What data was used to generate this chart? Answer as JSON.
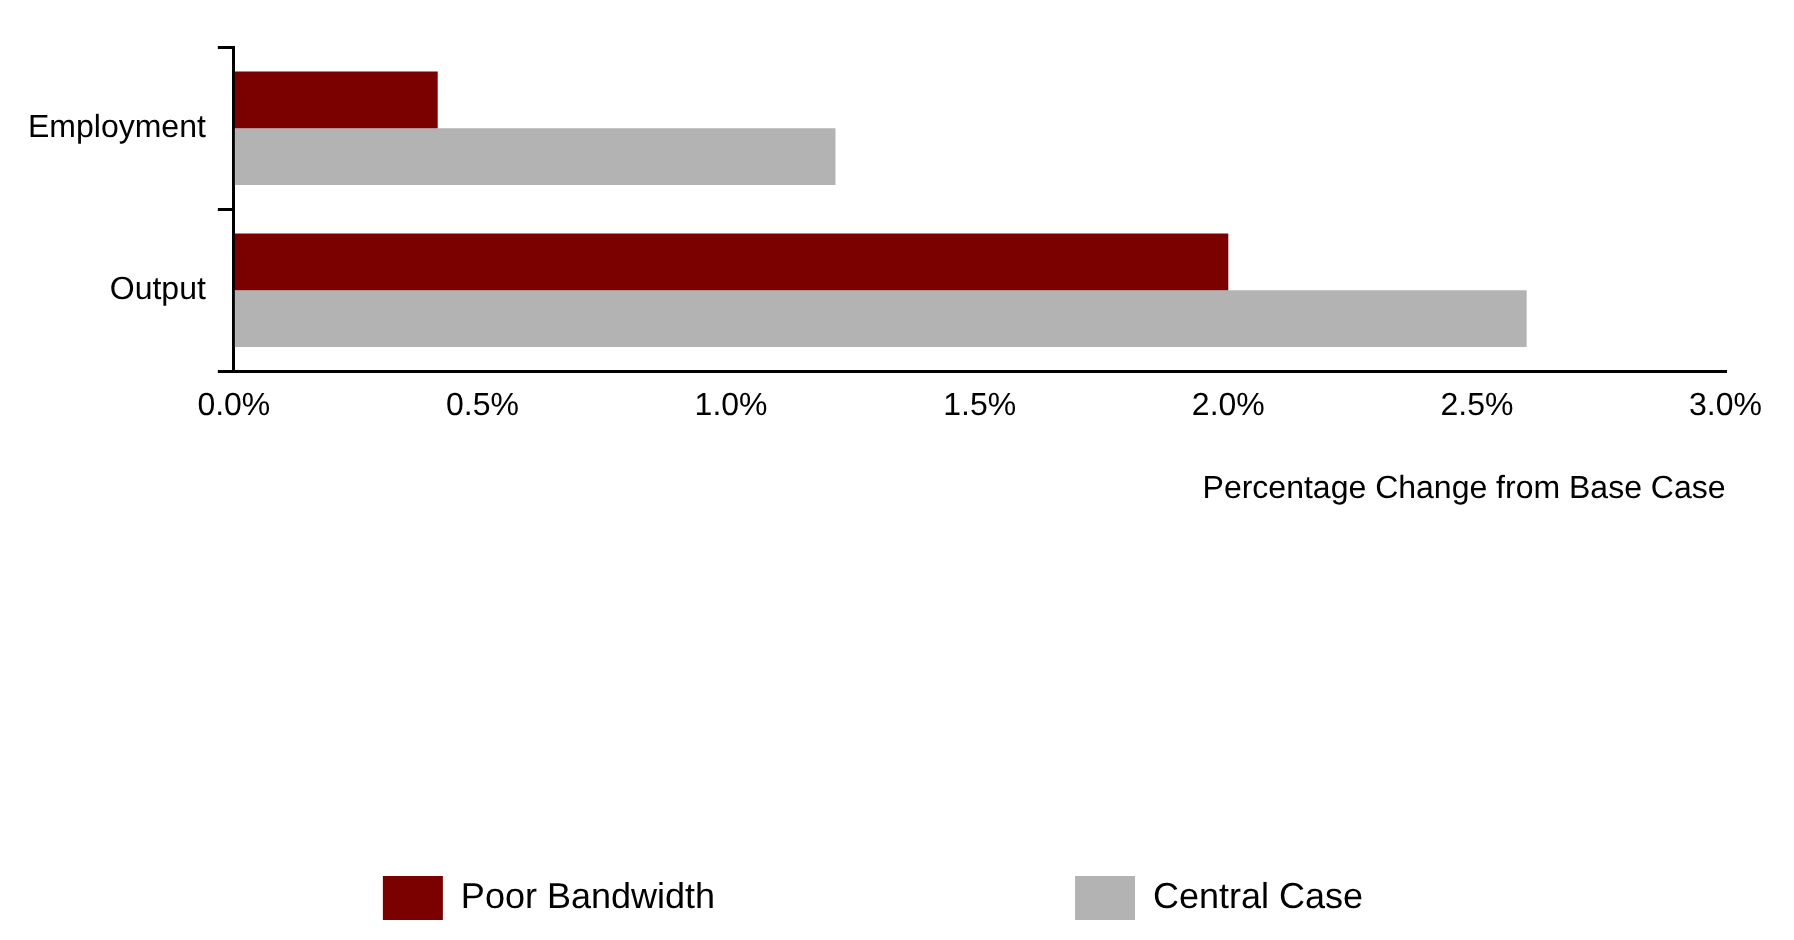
{
  "chart_data": {
    "type": "bar",
    "orientation": "horizontal",
    "xlabel": "Percentage Change from Base Case",
    "categories": [
      "Employment",
      "Output"
    ],
    "series": [
      {
        "name": "Poor Bandwidth",
        "color": "#7b0000",
        "values": [
          0.41,
          2.0
        ]
      },
      {
        "name": "Central Case",
        "color": "#b3b3b3",
        "values": [
          1.21,
          2.6
        ]
      }
    ],
    "xlim": [
      0,
      3
    ],
    "xticks": [
      {
        "value": 0,
        "label": "0.0%"
      },
      {
        "value": 0.5,
        "label": "0.5%"
      },
      {
        "value": 1,
        "label": "1.0%"
      },
      {
        "value": 1.5,
        "label": "1.5%"
      },
      {
        "value": 2,
        "label": "2.0%"
      },
      {
        "value": 2.5,
        "label": "2.5%"
      },
      {
        "value": 3,
        "label": "3.0%"
      }
    ],
    "grid": false,
    "legend": "bottom"
  }
}
